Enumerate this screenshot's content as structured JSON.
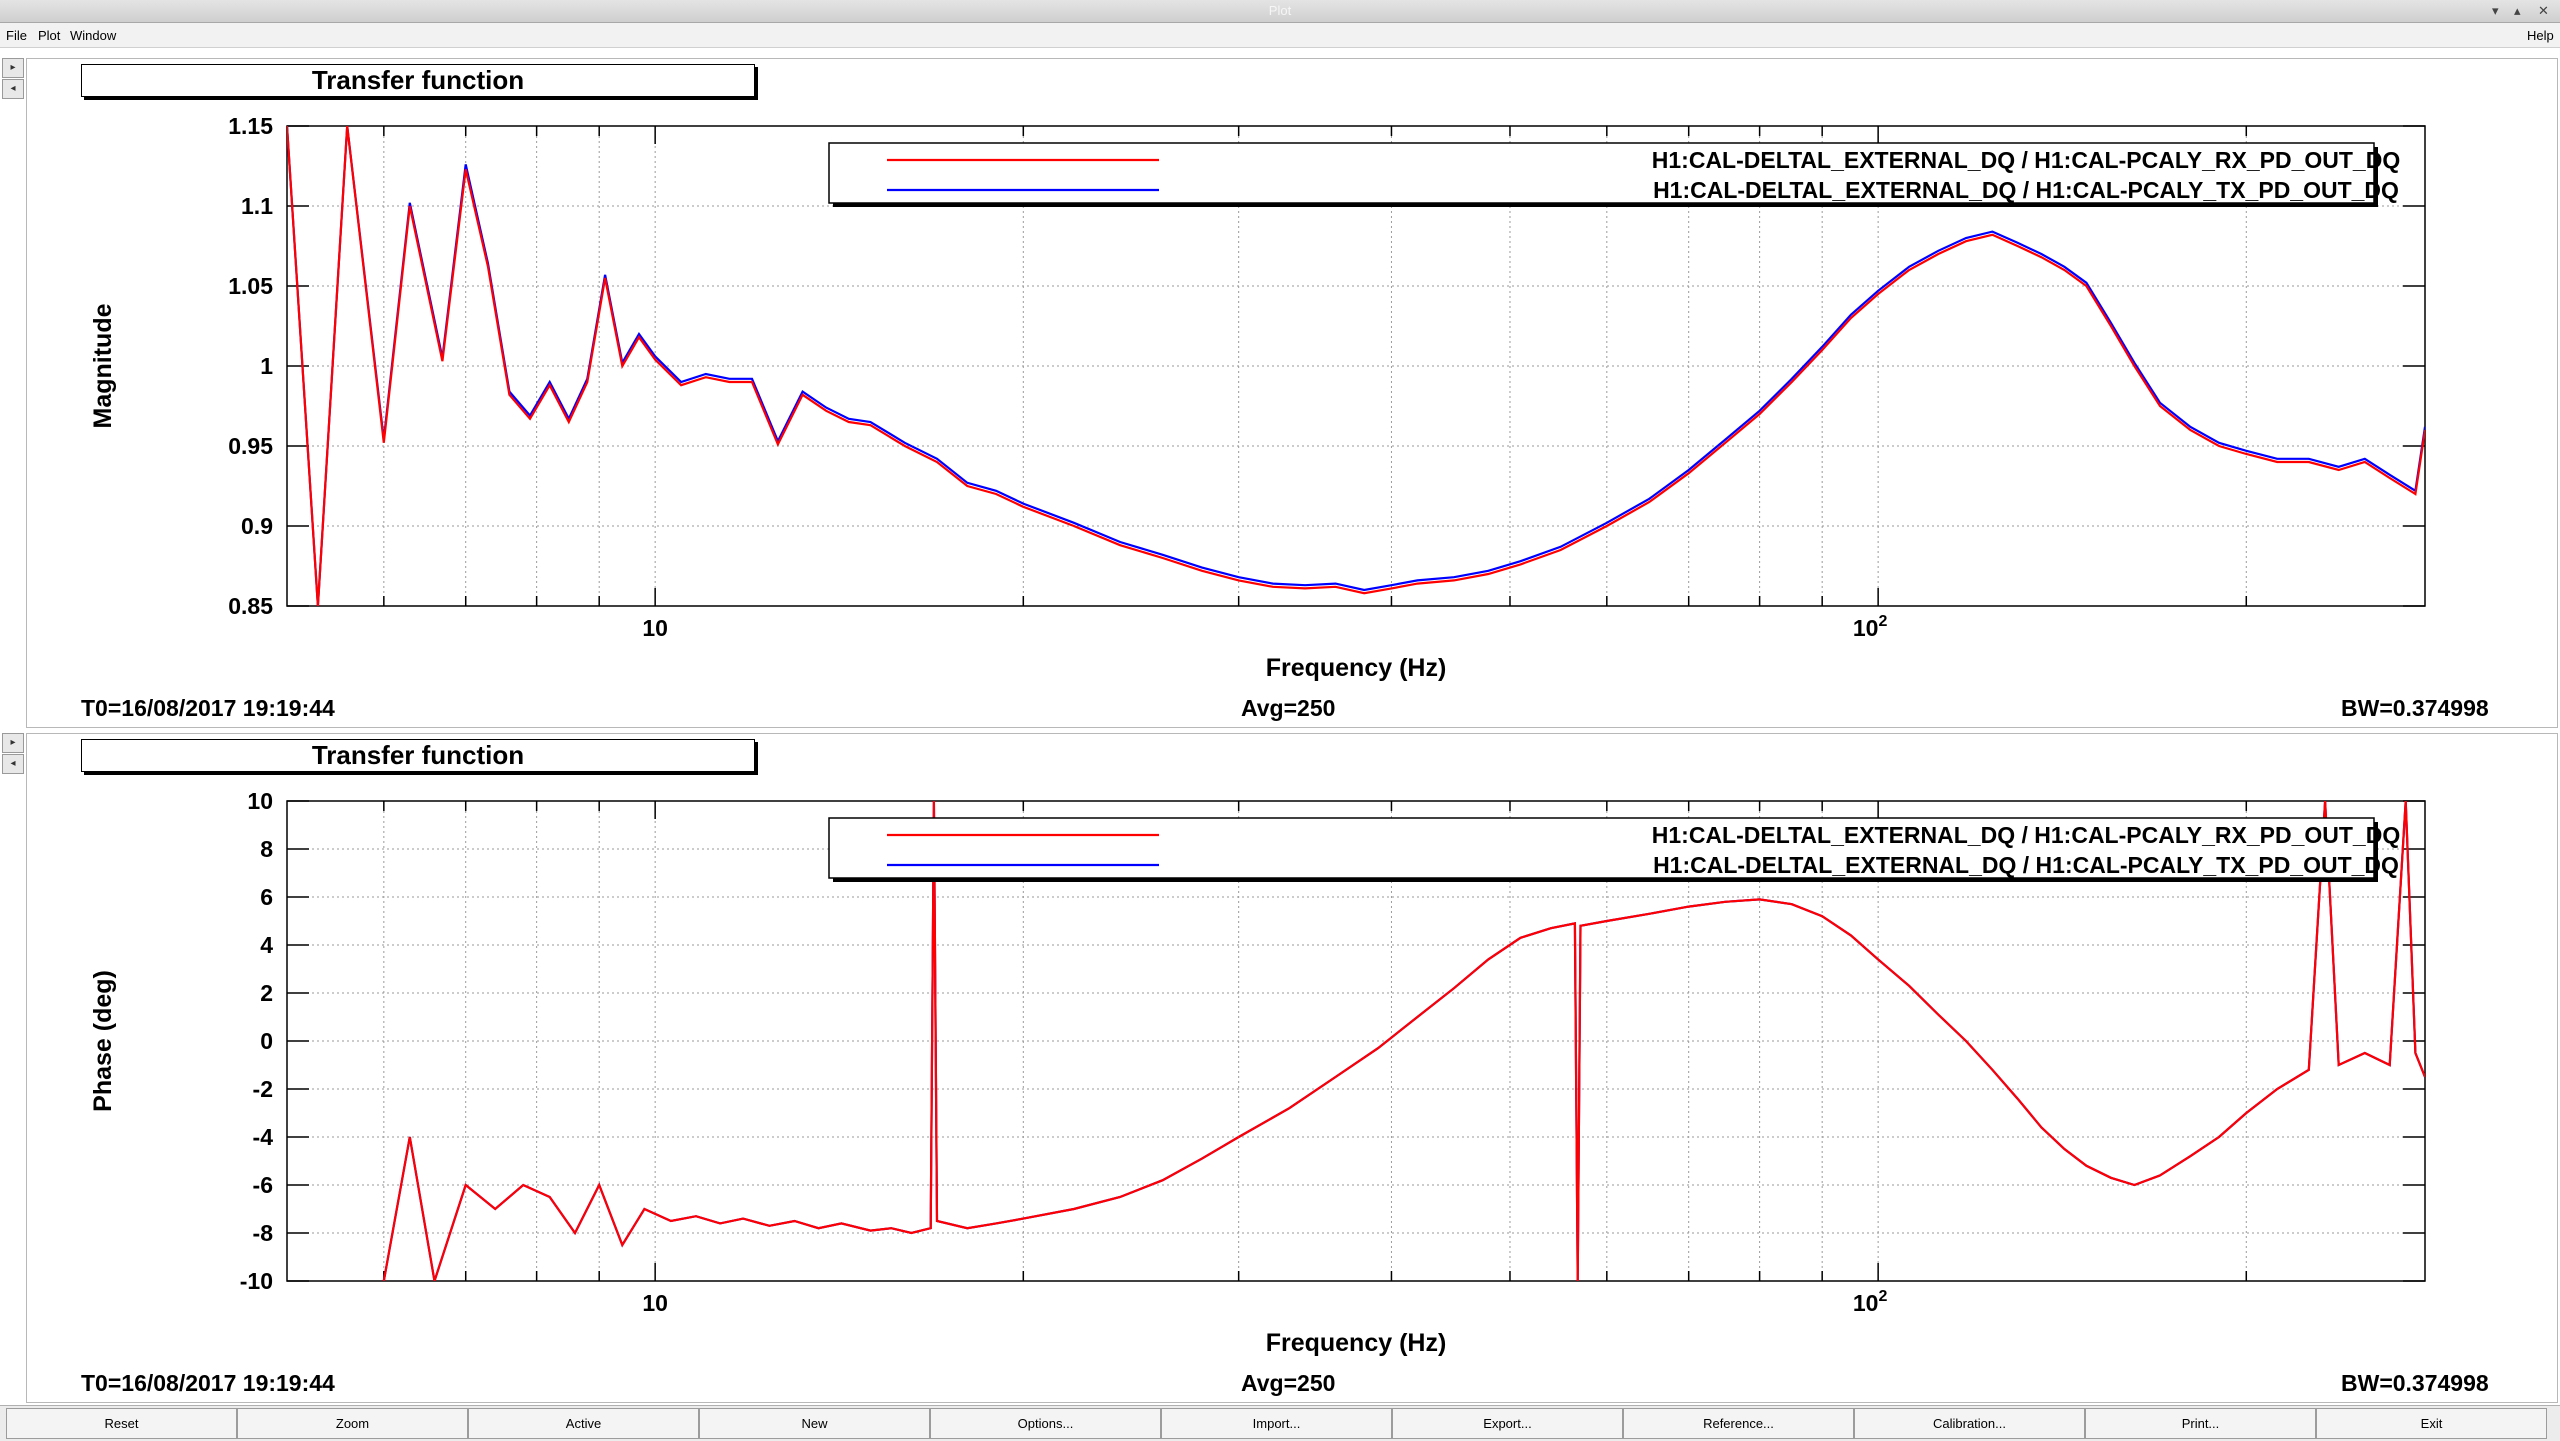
{
  "window": {
    "title": "Plot"
  },
  "menu": {
    "file": "File",
    "plot": "Plot",
    "window": "Window",
    "help": "Help"
  },
  "side_buttons": {
    "up": "▸",
    "down": "◂"
  },
  "toolbar": {
    "buttons": [
      "Reset",
      "Zoom",
      "Active",
      "New",
      "Options...",
      "Import...",
      "Export...",
      "Reference...",
      "Calibration...",
      "Print...",
      "Exit"
    ]
  },
  "panels": [
    {
      "title": "Transfer function",
      "info": {
        "t0": "T0=16/08/2017 19:19:44",
        "avg": "Avg=250",
        "bw": "BW=0.374998"
      }
    },
    {
      "title": "Transfer function",
      "info": {
        "t0": "T0=16/08/2017 19:19:44",
        "avg": "Avg=250",
        "bw": "BW=0.374998"
      }
    }
  ],
  "colors": {
    "series_rx": "#ff0000",
    "series_tx": "#0000ff",
    "frame": "#000000",
    "grid": "#9a9a9a"
  },
  "chart_data": [
    {
      "type": "line",
      "title": "",
      "xlabel": "Frequency (Hz)",
      "ylabel": "Magnitude",
      "xscale": "log",
      "xlim": [
        5,
        280
      ],
      "ylim": [
        0.85,
        1.15
      ],
      "grid": true,
      "legend": "top-right",
      "y_ticks": [
        "0.85",
        "0.9",
        "0.95",
        "1",
        "1.05",
        "1.1",
        "1.15"
      ],
      "x_tick_labels": [
        {
          "value": 10,
          "label": "10"
        },
        {
          "value": 100,
          "label": "10",
          "exp": "2"
        }
      ],
      "series": [
        {
          "name": "H1:CAL-DELTAL_EXTERNAL_DQ / H1:CAL-PCALY_RX_PD_OUT_DQ",
          "x": [
            5.0,
            5.3,
            5.6,
            6.0,
            6.3,
            6.7,
            7.0,
            7.3,
            7.6,
            7.9,
            8.2,
            8.5,
            8.8,
            9.1,
            9.4,
            9.7,
            10.0,
            10.5,
            11.0,
            11.5,
            12.0,
            12.6,
            13.2,
            13.8,
            14.4,
            15.0,
            16.0,
            17.0,
            18.0,
            19.0,
            20.0,
            22.0,
            24.0,
            26.0,
            28.0,
            30.0,
            32.0,
            34.0,
            36.0,
            38.0,
            40.0,
            42.0,
            45.0,
            48.0,
            51.0,
            55.0,
            60.0,
            65.0,
            70.0,
            75.0,
            80.0,
            85.0,
            90.0,
            95.0,
            100.0,
            106.0,
            112.0,
            118.0,
            124.0,
            130.0,
            136.0,
            142.0,
            148.0,
            155.0,
            162.0,
            170.0,
            180.0,
            190.0,
            200.0,
            212.0,
            225.0,
            238.0,
            250.0,
            262.0,
            275.0,
            280.0
          ],
          "values": [
            1.15,
            0.85,
            1.15,
            0.952,
            1.1,
            1.003,
            1.123,
            1.062,
            0.982,
            0.967,
            0.988,
            0.965,
            0.99,
            1.055,
            1.0,
            1.018,
            1.004,
            0.988,
            0.993,
            0.99,
            0.99,
            0.951,
            0.982,
            0.972,
            0.965,
            0.963,
            0.95,
            0.94,
            0.925,
            0.92,
            0.912,
            0.9,
            0.888,
            0.88,
            0.872,
            0.866,
            0.862,
            0.861,
            0.862,
            0.858,
            0.861,
            0.864,
            0.866,
            0.87,
            0.876,
            0.885,
            0.9,
            0.915,
            0.933,
            0.952,
            0.97,
            0.99,
            1.01,
            1.03,
            1.045,
            1.06,
            1.07,
            1.078,
            1.082,
            1.075,
            1.068,
            1.06,
            1.05,
            1.025,
            1.0,
            0.975,
            0.96,
            0.95,
            0.945,
            0.94,
            0.94,
            0.935,
            0.94,
            0.93,
            0.92,
            0.96
          ]
        },
        {
          "name": "H1:CAL-DELTAL_EXTERNAL_DQ / H1:CAL-PCALY_TX_PD_OUT_DQ",
          "x": [
            5.0,
            5.3,
            5.6,
            6.0,
            6.3,
            6.7,
            7.0,
            7.3,
            7.6,
            7.9,
            8.2,
            8.5,
            8.8,
            9.1,
            9.4,
            9.7,
            10.0,
            10.5,
            11.0,
            11.5,
            12.0,
            12.6,
            13.2,
            13.8,
            14.4,
            15.0,
            16.0,
            17.0,
            18.0,
            19.0,
            20.0,
            22.0,
            24.0,
            26.0,
            28.0,
            30.0,
            32.0,
            34.0,
            36.0,
            38.0,
            40.0,
            42.0,
            45.0,
            48.0,
            51.0,
            55.0,
            60.0,
            65.0,
            70.0,
            75.0,
            80.0,
            85.0,
            90.0,
            95.0,
            100.0,
            106.0,
            112.0,
            118.0,
            124.0,
            130.0,
            136.0,
            142.0,
            148.0,
            155.0,
            162.0,
            170.0,
            180.0,
            190.0,
            200.0,
            212.0,
            225.0,
            238.0,
            250.0,
            262.0,
            275.0,
            280.0
          ],
          "values": [
            1.15,
            0.85,
            1.15,
            0.954,
            1.102,
            1.005,
            1.126,
            1.064,
            0.984,
            0.969,
            0.99,
            0.967,
            0.992,
            1.057,
            1.002,
            1.02,
            1.006,
            0.99,
            0.995,
            0.992,
            0.992,
            0.953,
            0.984,
            0.974,
            0.967,
            0.965,
            0.952,
            0.942,
            0.927,
            0.922,
            0.914,
            0.902,
            0.89,
            0.882,
            0.874,
            0.868,
            0.864,
            0.863,
            0.864,
            0.86,
            0.863,
            0.866,
            0.868,
            0.872,
            0.878,
            0.887,
            0.902,
            0.917,
            0.935,
            0.954,
            0.972,
            0.992,
            1.012,
            1.032,
            1.047,
            1.062,
            1.072,
            1.08,
            1.084,
            1.077,
            1.07,
            1.062,
            1.052,
            1.027,
            1.002,
            0.977,
            0.962,
            0.952,
            0.947,
            0.942,
            0.942,
            0.937,
            0.942,
            0.932,
            0.922,
            0.962
          ]
        }
      ]
    },
    {
      "type": "line",
      "title": "",
      "xlabel": "Frequency (Hz)",
      "ylabel": "Phase (deg)",
      "xscale": "log",
      "xlim": [
        5,
        280
      ],
      "ylim": [
        -10,
        10
      ],
      "grid": true,
      "legend": "top-right",
      "y_ticks": [
        "-10",
        "-8",
        "-6",
        "-4",
        "-2",
        "0",
        "2",
        "4",
        "6",
        "8",
        "10"
      ],
      "x_tick_labels": [
        {
          "value": 10,
          "label": "10"
        },
        {
          "value": 100,
          "label": "10",
          "exp": "2"
        }
      ],
      "series": [
        {
          "name": "H1:CAL-DELTAL_EXTERNAL_DQ / H1:CAL-PCALY_RX_PD_OUT_DQ",
          "x": [
            6.0,
            6.3,
            6.6,
            7.0,
            7.4,
            7.8,
            8.2,
            8.6,
            9.0,
            9.4,
            9.8,
            10.3,
            10.8,
            11.3,
            11.8,
            12.4,
            13.0,
            13.6,
            14.2,
            15.0,
            15.6,
            16.2,
            16.8,
            16.9,
            17.0,
            18.0,
            19.0,
            20.0,
            22.0,
            24.0,
            26.0,
            28.0,
            30.0,
            33.0,
            36.0,
            39.0,
            42.0,
            45.0,
            48.0,
            51.0,
            54.0,
            56.5,
            56.8,
            57.1,
            60.0,
            65.0,
            70.0,
            75.0,
            80.0,
            85.0,
            90.0,
            95.0,
            100.0,
            106.0,
            112.0,
            118.0,
            124.0,
            130.0,
            136.0,
            142.0,
            148.0,
            155.0,
            162.0,
            170.0,
            180.0,
            190.0,
            200.0,
            212.0,
            225.0,
            232.0,
            238.0,
            250.0,
            262.0,
            270.0,
            275.0,
            280.0
          ],
          "values": [
            -10.0,
            -4.0,
            -10.0,
            -6.0,
            -7.0,
            -6.0,
            -6.5,
            -8.0,
            -6.0,
            -8.5,
            -7.0,
            -7.5,
            -7.3,
            -7.6,
            -7.4,
            -7.7,
            -7.5,
            -7.8,
            -7.6,
            -7.9,
            -7.8,
            -8.0,
            -7.8,
            10.0,
            -7.5,
            -7.8,
            -7.6,
            -7.4,
            -7.0,
            -6.5,
            -5.8,
            -4.9,
            -4.0,
            -2.8,
            -1.5,
            -0.3,
            1.0,
            2.2,
            3.4,
            4.3,
            4.7,
            4.9,
            -10.0,
            4.8,
            5.0,
            5.3,
            5.6,
            5.8,
            5.9,
            5.7,
            5.2,
            4.4,
            3.4,
            2.3,
            1.1,
            0.0,
            -1.2,
            -2.4,
            -3.6,
            -4.5,
            -5.2,
            -5.7,
            -6.0,
            -5.6,
            -4.8,
            -4.0,
            -3.0,
            -2.0,
            -1.2,
            10.0,
            -1.0,
            -0.5,
            -1.0,
            10.0,
            -0.5,
            -1.5
          ]
        },
        {
          "name": "H1:CAL-DELTAL_EXTERNAL_DQ / H1:CAL-PCALY_TX_PD_OUT_DQ",
          "x": [
            6.0,
            6.3,
            6.6,
            7.0,
            7.4,
            7.8,
            8.2,
            8.6,
            9.0,
            9.4,
            9.8,
            10.3,
            10.8,
            11.3,
            11.8,
            12.4,
            13.0,
            13.6,
            14.2,
            15.0,
            15.6,
            16.2,
            16.8,
            16.9,
            17.0,
            18.0,
            19.0,
            20.0,
            22.0,
            24.0,
            26.0,
            28.0,
            30.0,
            33.0,
            36.0,
            39.0,
            42.0,
            45.0,
            48.0,
            51.0,
            54.0,
            56.5,
            56.8,
            57.1,
            60.0,
            65.0,
            70.0,
            75.0,
            80.0,
            85.0,
            90.0,
            95.0,
            100.0,
            106.0,
            112.0,
            118.0,
            124.0,
            130.0,
            136.0,
            142.0,
            148.0,
            155.0,
            162.0,
            170.0,
            180.0,
            190.0,
            200.0,
            212.0,
            225.0,
            232.0,
            238.0,
            250.0,
            262.0,
            270.0,
            275.0,
            280.0
          ],
          "values": [
            -10.0,
            -4.0,
            -10.0,
            -6.0,
            -7.0,
            -6.0,
            -6.5,
            -8.0,
            -6.0,
            -8.5,
            -7.0,
            -7.5,
            -7.3,
            -7.6,
            -7.4,
            -7.7,
            -7.5,
            -7.8,
            -7.6,
            -7.9,
            -7.8,
            -8.0,
            -7.8,
            10.0,
            -7.5,
            -7.8,
            -7.6,
            -7.4,
            -7.0,
            -6.5,
            -5.8,
            -4.9,
            -4.0,
            -2.8,
            -1.5,
            -0.3,
            1.0,
            2.2,
            3.4,
            4.3,
            4.7,
            4.9,
            -10.0,
            4.8,
            5.0,
            5.3,
            5.6,
            5.8,
            5.9,
            5.7,
            5.2,
            4.4,
            3.4,
            2.3,
            1.1,
            0.0,
            -1.2,
            -2.4,
            -3.6,
            -4.5,
            -5.2,
            -5.7,
            -6.0,
            -5.6,
            -4.8,
            -4.0,
            -3.0,
            -2.0,
            -1.2,
            10.0,
            -1.0,
            -0.5,
            -1.0,
            10.0,
            -0.5,
            -1.5
          ]
        }
      ]
    }
  ]
}
